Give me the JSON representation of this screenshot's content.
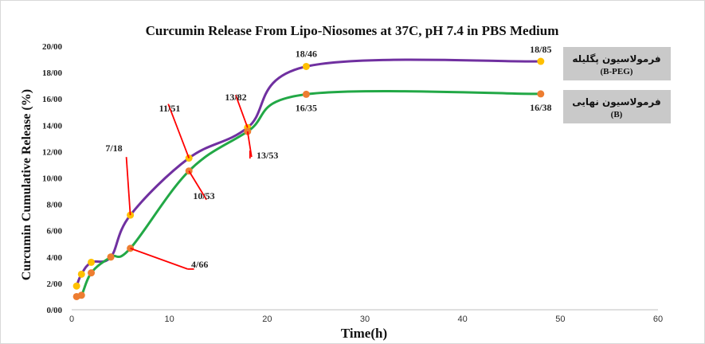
{
  "chart_data": {
    "type": "line",
    "title": "Curcumin Release From Lipo-Niosomes at 37C, pH 7.4 in PBS Medium",
    "xlabel": "Time(h)",
    "ylabel": "Curcumin Cumulative Release (%)",
    "xlim": [
      0,
      60
    ],
    "ylim": [
      0,
      20
    ],
    "xticks": [
      "0",
      "10",
      "20",
      "30",
      "40",
      "50",
      "60"
    ],
    "yticks": [
      "0/00",
      "2/00",
      "4/00",
      "6/00",
      "8/00",
      "10/00",
      "12/00",
      "14/00",
      "16/00",
      "18/00",
      "20/00"
    ],
    "grid": false,
    "legend_position": "right",
    "series": [
      {
        "name": "فرمولاسیون پگلیله",
        "name_sub": "(B-PEG)",
        "line_color": "#7030a0",
        "marker_color": "#ffc000",
        "x": [
          0.5,
          1,
          2,
          4,
          6,
          12,
          18,
          24,
          48
        ],
        "y": [
          1.8,
          2.7,
          3.6,
          4.0,
          7.18,
          11.51,
          13.82,
          18.46,
          18.85
        ]
      },
      {
        "name": "فرمولاسیون نهایی",
        "name_sub": "(B)",
        "line_color": "#22a846",
        "marker_color": "#ed7d31",
        "x": [
          0.5,
          1,
          2,
          4,
          6,
          12,
          18,
          24,
          48
        ],
        "y": [
          1.0,
          1.1,
          2.8,
          4.0,
          4.66,
          10.53,
          13.53,
          16.35,
          16.38
        ]
      }
    ],
    "annotations": [
      {
        "text": "7/18",
        "x": 6,
        "y": 7.18
      },
      {
        "text": "11/51",
        "x": 12,
        "y": 11.51
      },
      {
        "text": "13/82",
        "x": 18,
        "y": 13.82
      },
      {
        "text": "18/46",
        "x": 24,
        "y": 18.46
      },
      {
        "text": "18/85",
        "x": 48,
        "y": 18.85
      },
      {
        "text": "4/66",
        "x": 6,
        "y": 4.66
      },
      {
        "text": "10/53",
        "x": 12,
        "y": 10.53
      },
      {
        "text": "13/53",
        "x": 18,
        "y": 13.53
      },
      {
        "text": "16/35",
        "x": 24,
        "y": 16.35
      },
      {
        "text": "16/38",
        "x": 48,
        "y": 16.38
      }
    ],
    "annotation_colors": {
      "leader": "#ff0000"
    }
  }
}
